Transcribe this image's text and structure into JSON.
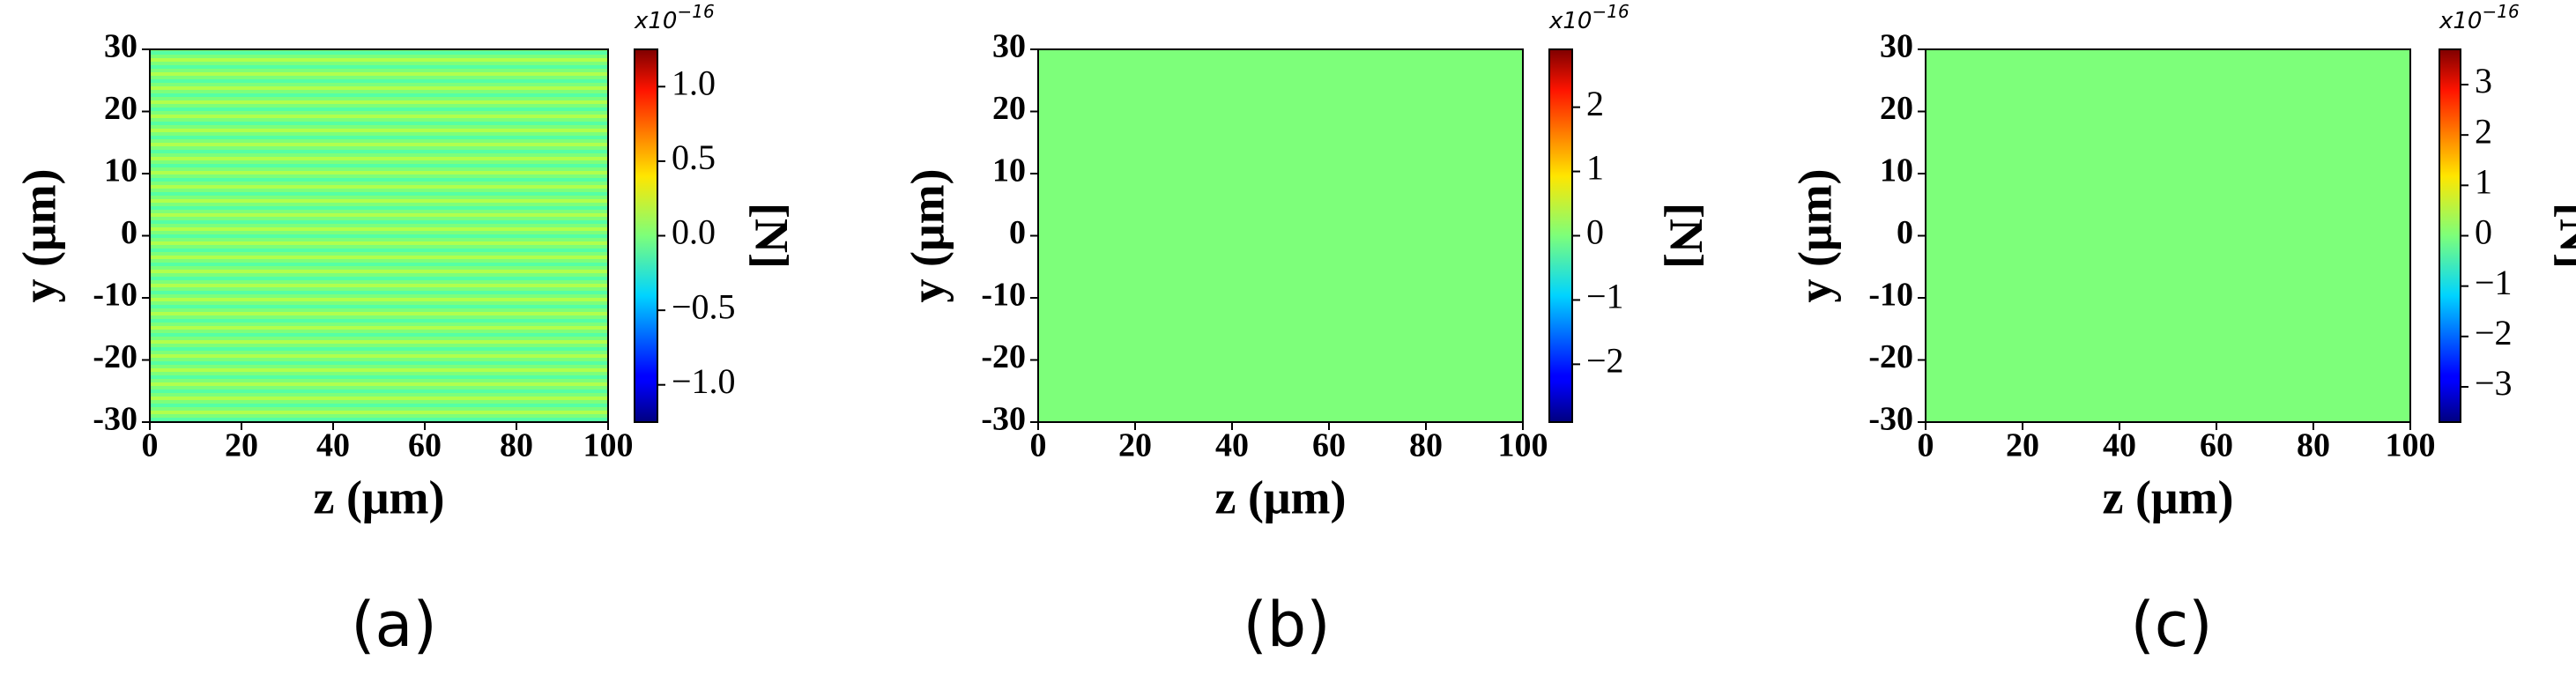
{
  "chart_data": [
    {
      "type": "heatmap",
      "xlabel": "z (μm)",
      "ylabel": "y (μm)",
      "caption": "(a)",
      "xlim": [
        0,
        100
      ],
      "xticks": [
        0,
        20,
        40,
        60,
        80,
        100
      ],
      "ylim": [
        -30,
        30
      ],
      "yticks": [
        -30,
        -20,
        -10,
        0,
        10,
        20,
        30
      ],
      "colorbar": {
        "label": "[N]",
        "scale_text": "x10",
        "scale_exponent": "−16",
        "lim": [
          -1.25,
          1.25
        ],
        "ticks": [
          {
            "value": -1,
            "label": "−1.0"
          },
          {
            "value": -0.5,
            "label": "−0.5"
          },
          {
            "value": 0,
            "label": "0.0"
          },
          {
            "value": 0.5,
            "label": "0.5"
          },
          {
            "value": 1,
            "label": "1.0"
          }
        ]
      }
    },
    {
      "type": "heatmap",
      "xlabel": "z (μm)",
      "ylabel": "y (μm)",
      "caption": "(b)",
      "xlim": [
        0,
        100
      ],
      "xticks": [
        0,
        20,
        40,
        60,
        80,
        100
      ],
      "ylim": [
        -30,
        30
      ],
      "yticks": [
        -30,
        -20,
        -10,
        0,
        10,
        20,
        30
      ],
      "colorbar": {
        "label": "[N]",
        "scale_text": "x10",
        "scale_exponent": "−16",
        "lim": [
          -2.9,
          2.9
        ],
        "ticks": [
          {
            "value": -2,
            "label": "−2"
          },
          {
            "value": -1,
            "label": "−1"
          },
          0,
          1,
          2
        ]
      }
    },
    {
      "type": "heatmap",
      "xlabel": "z (μm)",
      "ylabel": "y (μm)",
      "caption": "(c)",
      "xlim": [
        0,
        100
      ],
      "xticks": [
        0,
        20,
        40,
        60,
        80,
        100
      ],
      "ylim": [
        -30,
        30
      ],
      "yticks": [
        -30,
        -20,
        -10,
        0,
        10,
        20,
        30
      ],
      "colorbar": {
        "label": "[N]",
        "scale_text": "x10",
        "scale_exponent": "−16",
        "lim": [
          -3.7,
          3.7
        ],
        "ticks": [
          {
            "value": -3,
            "label": "−3"
          },
          {
            "value": -2,
            "label": "−2"
          },
          {
            "value": -1,
            "label": "−1"
          },
          0,
          1,
          2,
          3
        ]
      }
    }
  ]
}
